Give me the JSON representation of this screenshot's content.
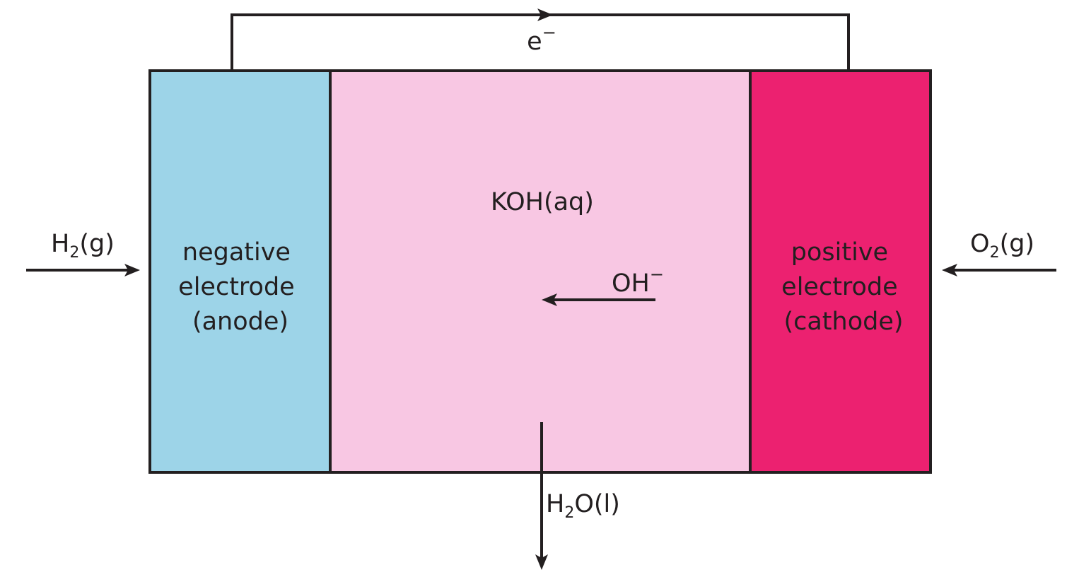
{
  "colors": {
    "anode": "#9dd4e8",
    "electrolyte": "#f8c7e3",
    "cathode": "#ec2170",
    "outline": "#231f20"
  },
  "circuit": {
    "electron": {
      "base": "e",
      "charge": "−"
    }
  },
  "anode": {
    "lines": [
      "negative",
      "electrode",
      "(anode)"
    ]
  },
  "electrolyte": {
    "label": "KOH(aq)",
    "ion": {
      "base": "OH",
      "charge": "−"
    }
  },
  "cathode": {
    "lines": [
      "positive",
      "electrode",
      "(cathode)"
    ]
  },
  "inputs": {
    "hydrogen": {
      "pre": "H",
      "sub": "2",
      "post": "(g)"
    },
    "oxygen": {
      "pre": "O",
      "sub": "2",
      "post": "(g)"
    }
  },
  "output": {
    "water": {
      "pre": "H",
      "sub": "2",
      "post": "O(l)"
    }
  }
}
